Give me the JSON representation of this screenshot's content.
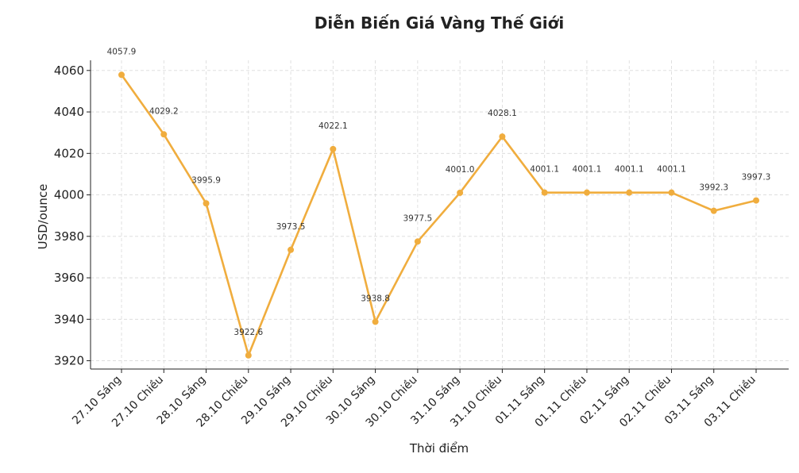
{
  "chart_data": {
    "type": "line",
    "title": "Diễn Biến Giá Vàng Thế Giới",
    "xlabel": "Thời điểm",
    "ylabel": "USD/ounce",
    "categories": [
      "27.10 Sáng",
      "27.10 Chiều",
      "28.10 Sáng",
      "28.10 Chiều",
      "29.10 Sáng",
      "29.10 Chiều",
      "30.10 Sáng",
      "30.10 Chiều",
      "31.10 Sáng",
      "31.10 Chiều",
      "01.11 Sáng",
      "01.11 Chiều",
      "02.11 Sáng",
      "02.11 Chiều",
      "03.11 Sáng",
      "03.11 Chiều"
    ],
    "values": [
      4057.9,
      4029.2,
      3995.9,
      3922.6,
      3973.5,
      4022.1,
      3938.8,
      3977.5,
      4001.0,
      4028.1,
      4001.1,
      4001.1,
      4001.1,
      4001.1,
      3992.3,
      3997.3
    ],
    "data_labels": [
      "4057.9",
      "4029.2",
      "3995.9",
      "3922.6",
      "3973.5",
      "4022.1",
      "3938.8",
      "3977.5",
      "4001.0",
      "4028.1",
      "4001.1",
      "4001.1",
      "4001.1",
      "4001.1",
      "3992.3",
      "3997.3"
    ],
    "yticks": [
      3920,
      3940,
      3960,
      3980,
      4000,
      4020,
      4040,
      4060
    ],
    "ylim": [
      3916,
      4064.9
    ],
    "grid": true,
    "line_color": "#F0AD3E"
  }
}
